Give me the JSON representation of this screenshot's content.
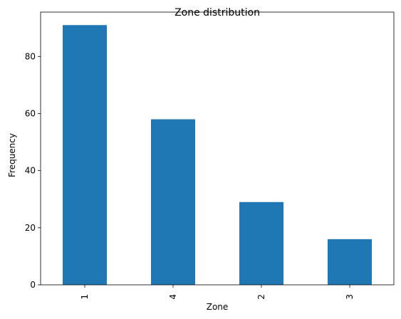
{
  "chart_data": {
    "type": "bar",
    "title": "Zone distribution",
    "xlabel": "Zone",
    "ylabel": "Frequency",
    "categories": [
      "1",
      "4",
      "2",
      "3"
    ],
    "values": [
      91,
      58,
      29,
      16
    ],
    "ylim": [
      0,
      95.55
    ],
    "yticks": [
      0,
      20,
      40,
      60,
      80
    ],
    "bar_color": "#1f77b4",
    "grid": false,
    "legend": "none"
  }
}
